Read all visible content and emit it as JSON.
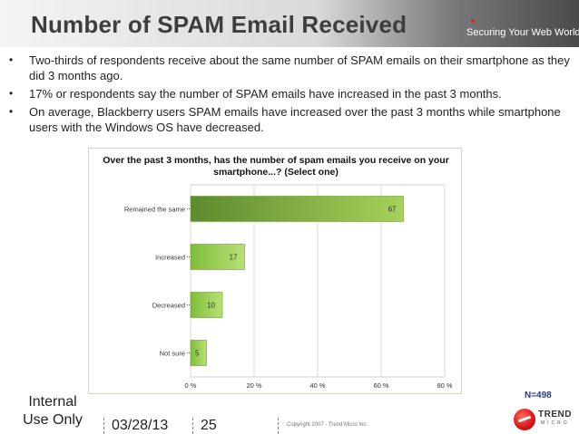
{
  "header": {
    "title": "Number of SPAM Email Received",
    "tagline": "Securing Your Web World"
  },
  "bullets": [
    "Two-thirds of respondents receive about the same number of SPAM emails on their smartphone as they did 3 months ago.",
    "17% or respondents say the number of SPAM emails have increased in the past 3 months.",
    "On average, Blackberry users SPAM emails have increased over the past 3 months while smartphone users with the Windows OS have decreased."
  ],
  "bullet_marker": "•",
  "chart_data": {
    "type": "bar",
    "orientation": "horizontal",
    "title": "Over the past 3 months, has the number of spam emails you receive on your smartphone...? (Select one)",
    "categories": [
      "Remained the same",
      "Increased",
      "Decreased",
      "Not sure"
    ],
    "values": [
      67,
      17,
      10,
      5
    ],
    "data_labels": [
      "67",
      "17",
      "10",
      "5"
    ],
    "xlim": [
      0,
      80
    ],
    "xticks": [
      0,
      20,
      40,
      60,
      80
    ],
    "xtick_labels": [
      "0 %",
      "20 %",
      "40 %",
      "60 %",
      "80 %"
    ],
    "grid": true,
    "bar_colors": [
      "#6d9a3a",
      "#8cc43e",
      "#8cc43e",
      "#8cc43e"
    ]
  },
  "sample_note": "N=498",
  "footer": {
    "classification": "Internal Use Only",
    "date": "03/28/13",
    "page_number": "25",
    "copyright": "Copyright 2007 - Trend Micro Inc."
  },
  "logo": {
    "name": "TREND",
    "sub": "MICRO",
    "icon": "trend-micro-logo-icon"
  },
  "colors": {
    "accent_red": "#d8141a",
    "title_gray": "#3d3d3d",
    "bar_green": "#8cc43e"
  }
}
